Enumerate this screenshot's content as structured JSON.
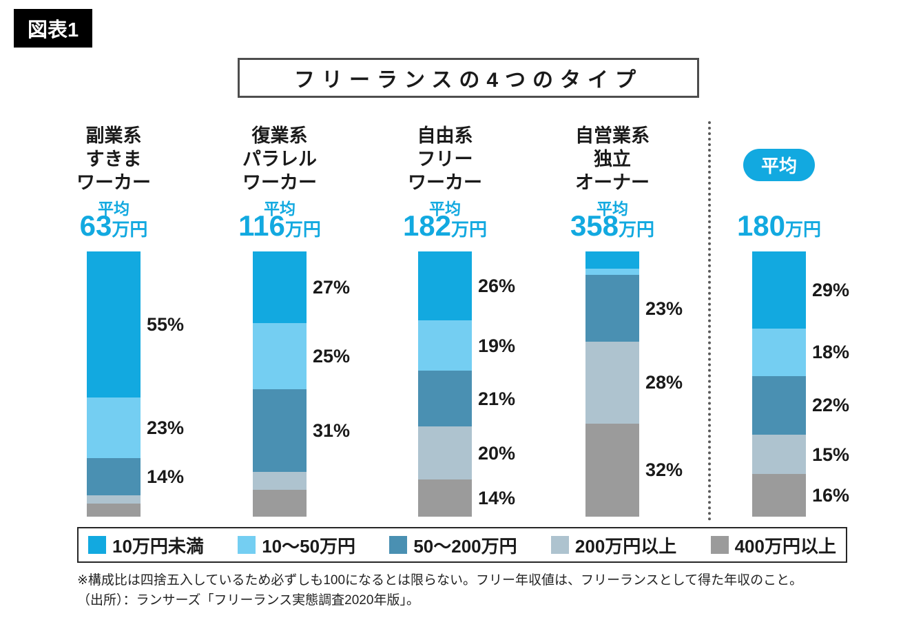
{
  "figure_label": "図表1",
  "title": "フリーランスの4つのタイプ",
  "legend": [
    {
      "label": "10万円未満",
      "color": "#12a9e0"
    },
    {
      "label": "10〜50万円",
      "color": "#74cef2"
    },
    {
      "label": "50〜200万円",
      "color": "#4a90b2"
    },
    {
      "label": "200万円以上",
      "color": "#aec3cf"
    },
    {
      "label": "400万円以上",
      "color": "#9b9b9b"
    }
  ],
  "footnote": {
    "line1": "※構成比は四捨五入しているため必ずしも100になるとは限らない。フリー年収値は、フリーランスとして得た年収のこと。",
    "line2": "（出所）：ランサーズ「フリーランス実態調査2020年版」。"
  },
  "chart_data": {
    "type": "bar",
    "stacked": true,
    "value_unit": "%",
    "title": "フリーランスの4つのタイプ",
    "categories": [
      "副業系すきまワーカー",
      "復業系パラレルワーカー",
      "自由系フリーワーカー",
      "自営業系独立オーナー",
      "平均"
    ],
    "series_labels": [
      "10万円未満",
      "10〜50万円",
      "50〜200万円",
      "200万円以上",
      "400万円以上"
    ],
    "legend_position": "bottom",
    "columns": [
      {
        "header_lines": [
          "副業系",
          "すきま",
          "ワーカー"
        ],
        "avg_caption": "平均",
        "avg_number": "63",
        "avg_unit": "万円",
        "values": [
          55,
          23,
          14,
          3,
          5
        ],
        "labels": [
          "55%",
          "23%",
          "14%",
          "",
          ""
        ]
      },
      {
        "header_lines": [
          "復業系",
          "パラレル",
          "ワーカー"
        ],
        "avg_caption": "平均",
        "avg_number": "116",
        "avg_unit": "万円",
        "values": [
          27,
          25,
          31,
          7,
          10
        ],
        "labels": [
          "27%",
          "25%",
          "31%",
          "",
          ""
        ]
      },
      {
        "header_lines": [
          "自由系",
          "フリー",
          "ワーカー"
        ],
        "avg_caption": "平均",
        "avg_number": "182",
        "avg_unit": "万円",
        "values": [
          26,
          19,
          21,
          20,
          14
        ],
        "labels": [
          "26%",
          "19%",
          "21%",
          "20%",
          "14%"
        ]
      },
      {
        "header_lines": [
          "自営業系",
          "独立",
          "オーナー"
        ],
        "avg_caption": "平均",
        "avg_number": "358",
        "avg_unit": "万円",
        "values": [
          6,
          2,
          23,
          28,
          32
        ],
        "labels": [
          "",
          "",
          "23%",
          "28%",
          "32%"
        ]
      },
      {
        "is_average": true,
        "badge": "平均",
        "avg_number": "180",
        "avg_unit": "万円",
        "values": [
          29,
          18,
          22,
          15,
          16
        ],
        "labels": [
          "29%",
          "18%",
          "22%",
          "15%",
          "16%"
        ]
      }
    ]
  }
}
